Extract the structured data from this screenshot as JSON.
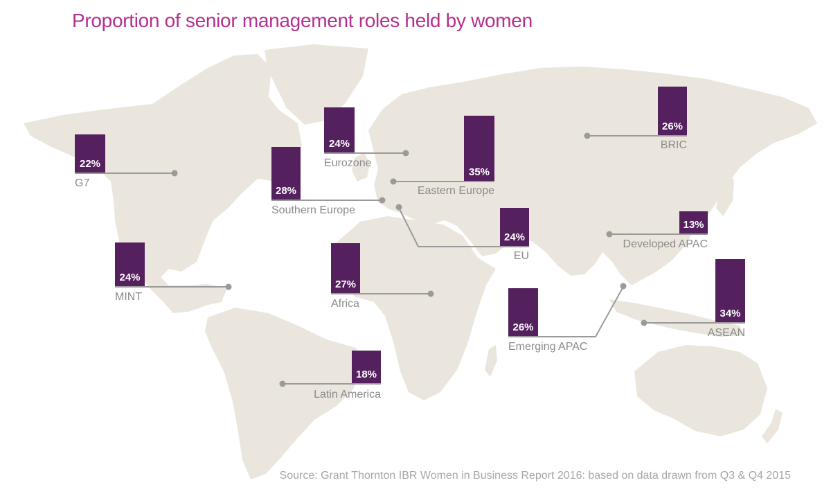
{
  "title": "Proportion of senior management roles held by women",
  "source": "Source: Grant Thornton IBR Women in Business Report 2016: based on data drawn from Q3 & Q4 2015",
  "colors": {
    "title": "#b32f8e",
    "bar": "#54205e",
    "land": "#ebe6dd",
    "connector": "#9a9a9a",
    "label": "#8a8a8a",
    "source": "#a6a6a6"
  },
  "regions": [
    {
      "name": "G7",
      "value": "22%"
    },
    {
      "name": "Eurozone",
      "value": "24%"
    },
    {
      "name": "Southern Europe",
      "value": "28%"
    },
    {
      "name": "Eastern Europe",
      "value": "35%"
    },
    {
      "name": "BRIC",
      "value": "26%"
    },
    {
      "name": "EU",
      "value": "24%"
    },
    {
      "name": "Developed APAC",
      "value": "13%"
    },
    {
      "name": "MINT",
      "value": "24%"
    },
    {
      "name": "Africa",
      "value": "27%"
    },
    {
      "name": "ASEAN",
      "value": "34%"
    },
    {
      "name": "Emerging APAC",
      "value": "26%"
    },
    {
      "name": "Latin America",
      "value": "18%"
    }
  ]
}
